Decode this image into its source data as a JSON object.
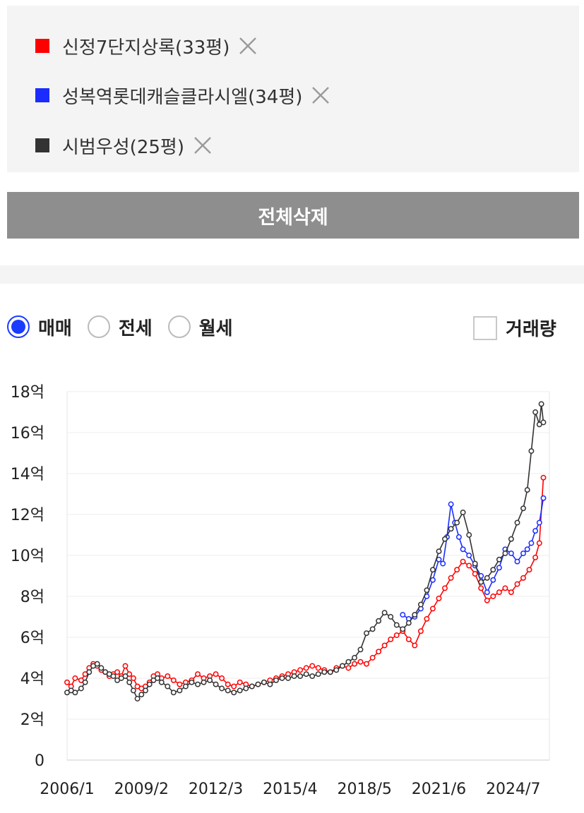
{
  "compare_list": {
    "items": [
      {
        "label": "신정7단지상록(33평)",
        "color": "#ff0000"
      },
      {
        "label": "성복역롯데캐슬클라시엘(34평)",
        "color": "#1a2cff"
      },
      {
        "label": "시범우성(25평)",
        "color": "#333333"
      }
    ],
    "close_icon": "close-icon"
  },
  "clear_all_label": "전체삭제",
  "trade_types": {
    "options": [
      "매매",
      "전세",
      "월세"
    ],
    "selected": "매매"
  },
  "volume_toggle": {
    "label": "거래량",
    "checked": false
  },
  "chart_data": {
    "type": "line",
    "title": "",
    "xlabel": "",
    "ylabel": "",
    "y_unit": "억",
    "ylim": [
      0,
      18
    ],
    "y_ticks": [
      0,
      2,
      4,
      6,
      8,
      10,
      12,
      14,
      16,
      18
    ],
    "y_tick_labels": [
      "0",
      "2억",
      "4억",
      "6억",
      "8억",
      "10억",
      "12억",
      "14억",
      "16억",
      "18억"
    ],
    "x_tick_labels": [
      "2006/1",
      "2009/2",
      "2012/3",
      "2015/4",
      "2018/5",
      "2021/6",
      "2024/7"
    ],
    "xlim": [
      "2006/1",
      "2026/1"
    ],
    "grid": true,
    "series": [
      {
        "name": "신정7단지상록(33평)",
        "color": "#ff0000",
        "points": [
          [
            "2006/1",
            3.8
          ],
          [
            "2006/3",
            3.6
          ],
          [
            "2006/5",
            4.0
          ],
          [
            "2006/8",
            3.9
          ],
          [
            "2006/10",
            4.2
          ],
          [
            "2006/12",
            4.5
          ],
          [
            "2007/2",
            4.7
          ],
          [
            "2007/4",
            4.6
          ],
          [
            "2007/6",
            4.4
          ],
          [
            "2007/8",
            4.3
          ],
          [
            "2007/10",
            4.1
          ],
          [
            "2007/12",
            4.2
          ],
          [
            "2008/2",
            4.3
          ],
          [
            "2008/4",
            4.1
          ],
          [
            "2008/6",
            4.6
          ],
          [
            "2008/8",
            4.2
          ],
          [
            "2008/10",
            4.0
          ],
          [
            "2008/12",
            3.6
          ],
          [
            "2009/2",
            3.5
          ],
          [
            "2009/4",
            3.6
          ],
          [
            "2009/6",
            3.8
          ],
          [
            "2009/8",
            4.1
          ],
          [
            "2009/10",
            4.2
          ],
          [
            "2009/12",
            4.0
          ],
          [
            "2010/3",
            4.1
          ],
          [
            "2010/6",
            3.9
          ],
          [
            "2010/9",
            3.7
          ],
          [
            "2010/12",
            3.8
          ],
          [
            "2011/3",
            3.9
          ],
          [
            "2011/6",
            4.2
          ],
          [
            "2011/9",
            4.0
          ],
          [
            "2011/12",
            4.1
          ],
          [
            "2012/3",
            4.2
          ],
          [
            "2012/6",
            4.0
          ],
          [
            "2012/9",
            3.7
          ],
          [
            "2012/12",
            3.6
          ],
          [
            "2013/3",
            3.8
          ],
          [
            "2013/6",
            3.7
          ],
          [
            "2013/9",
            3.6
          ],
          [
            "2013/12",
            3.7
          ],
          [
            "2014/3",
            3.8
          ],
          [
            "2014/6",
            3.9
          ],
          [
            "2014/9",
            4.0
          ],
          [
            "2014/12",
            4.1
          ],
          [
            "2015/3",
            4.2
          ],
          [
            "2015/6",
            4.3
          ],
          [
            "2015/9",
            4.4
          ],
          [
            "2015/12",
            4.5
          ],
          [
            "2016/3",
            4.6
          ],
          [
            "2016/6",
            4.5
          ],
          [
            "2016/9",
            4.4
          ],
          [
            "2016/12",
            4.3
          ],
          [
            "2017/3",
            4.5
          ],
          [
            "2017/6",
            4.6
          ],
          [
            "2017/9",
            4.5
          ],
          [
            "2017/12",
            4.7
          ],
          [
            "2018/3",
            4.8
          ],
          [
            "2018/6",
            4.7
          ],
          [
            "2018/9",
            5.0
          ],
          [
            "2018/12",
            5.3
          ],
          [
            "2019/3",
            5.6
          ],
          [
            "2019/6",
            5.9
          ],
          [
            "2019/9",
            6.1
          ],
          [
            "2019/12",
            6.3
          ],
          [
            "2020/3",
            5.9
          ],
          [
            "2020/6",
            5.6
          ],
          [
            "2020/9",
            6.3
          ],
          [
            "2020/12",
            6.9
          ],
          [
            "2021/3",
            7.4
          ],
          [
            "2021/6",
            7.9
          ],
          [
            "2021/9",
            8.4
          ],
          [
            "2021/12",
            8.9
          ],
          [
            "2022/3",
            9.3
          ],
          [
            "2022/6",
            9.7
          ],
          [
            "2022/9",
            9.5
          ],
          [
            "2022/12",
            9.1
          ],
          [
            "2023/3",
            8.4
          ],
          [
            "2023/6",
            7.8
          ],
          [
            "2023/9",
            8.0
          ],
          [
            "2023/12",
            8.2
          ],
          [
            "2024/3",
            8.4
          ],
          [
            "2024/6",
            8.2
          ],
          [
            "2024/9",
            8.6
          ],
          [
            "2024/12",
            8.9
          ],
          [
            "2025/3",
            9.3
          ],
          [
            "2025/6",
            9.9
          ],
          [
            "2025/8",
            10.6
          ],
          [
            "2025/10",
            13.8
          ]
        ]
      },
      {
        "name": "성복역롯데캐슬클라시엘(34평)",
        "color": "#1a2cff",
        "points": [
          [
            "2019/12",
            7.1
          ],
          [
            "2020/3",
            6.9
          ],
          [
            "2020/6",
            7.0
          ],
          [
            "2020/9",
            7.4
          ],
          [
            "2020/12",
            8.0
          ],
          [
            "2021/3",
            8.8
          ],
          [
            "2021/6",
            9.8
          ],
          [
            "2021/8",
            9.6
          ],
          [
            "2021/10",
            10.9
          ],
          [
            "2021/12",
            12.5
          ],
          [
            "2022/2",
            11.6
          ],
          [
            "2022/4",
            10.9
          ],
          [
            "2022/6",
            10.3
          ],
          [
            "2022/9",
            10.0
          ],
          [
            "2022/12",
            9.5
          ],
          [
            "2023/3",
            9.0
          ],
          [
            "2023/6",
            8.2
          ],
          [
            "2023/9",
            8.8
          ],
          [
            "2023/12",
            9.4
          ],
          [
            "2024/3",
            10.3
          ],
          [
            "2024/6",
            10.1
          ],
          [
            "2024/9",
            9.7
          ],
          [
            "2024/12",
            10.1
          ],
          [
            "2025/2",
            10.3
          ],
          [
            "2025/4",
            10.6
          ],
          [
            "2025/6",
            11.2
          ],
          [
            "2025/8",
            11.6
          ],
          [
            "2025/10",
            12.8
          ]
        ]
      },
      {
        "name": "시범우성(25평)",
        "color": "#333333",
        "points": [
          [
            "2006/1",
            3.3
          ],
          [
            "2006/3",
            3.4
          ],
          [
            "2006/5",
            3.3
          ],
          [
            "2006/8",
            3.5
          ],
          [
            "2006/10",
            3.8
          ],
          [
            "2006/12",
            4.3
          ],
          [
            "2007/2",
            4.6
          ],
          [
            "2007/4",
            4.7
          ],
          [
            "2007/6",
            4.5
          ],
          [
            "2007/8",
            4.3
          ],
          [
            "2007/10",
            4.2
          ],
          [
            "2007/12",
            4.1
          ],
          [
            "2008/2",
            3.9
          ],
          [
            "2008/4",
            4.0
          ],
          [
            "2008/6",
            4.1
          ],
          [
            "2008/8",
            3.8
          ],
          [
            "2008/10",
            3.4
          ],
          [
            "2008/12",
            3.0
          ],
          [
            "2009/2",
            3.2
          ],
          [
            "2009/4",
            3.4
          ],
          [
            "2009/6",
            3.7
          ],
          [
            "2009/8",
            3.9
          ],
          [
            "2009/10",
            4.0
          ],
          [
            "2009/12",
            3.8
          ],
          [
            "2010/3",
            3.6
          ],
          [
            "2010/6",
            3.3
          ],
          [
            "2010/9",
            3.4
          ],
          [
            "2010/12",
            3.6
          ],
          [
            "2011/3",
            3.8
          ],
          [
            "2011/6",
            3.7
          ],
          [
            "2011/9",
            3.8
          ],
          [
            "2011/12",
            3.9
          ],
          [
            "2012/3",
            3.7
          ],
          [
            "2012/6",
            3.5
          ],
          [
            "2012/9",
            3.4
          ],
          [
            "2012/12",
            3.3
          ],
          [
            "2013/3",
            3.4
          ],
          [
            "2013/6",
            3.5
          ],
          [
            "2013/9",
            3.6
          ],
          [
            "2013/12",
            3.7
          ],
          [
            "2014/3",
            3.8
          ],
          [
            "2014/6",
            3.7
          ],
          [
            "2014/9",
            3.9
          ],
          [
            "2014/12",
            4.0
          ],
          [
            "2015/3",
            4.0
          ],
          [
            "2015/6",
            4.1
          ],
          [
            "2015/9",
            4.1
          ],
          [
            "2015/12",
            4.2
          ],
          [
            "2016/3",
            4.1
          ],
          [
            "2016/6",
            4.2
          ],
          [
            "2016/9",
            4.3
          ],
          [
            "2016/12",
            4.3
          ],
          [
            "2017/3",
            4.4
          ],
          [
            "2017/6",
            4.6
          ],
          [
            "2017/9",
            4.8
          ],
          [
            "2017/12",
            5.0
          ],
          [
            "2018/3",
            5.4
          ],
          [
            "2018/6",
            6.2
          ],
          [
            "2018/9",
            6.4
          ],
          [
            "2018/12",
            6.8
          ],
          [
            "2019/3",
            7.2
          ],
          [
            "2019/6",
            7.0
          ],
          [
            "2019/9",
            6.6
          ],
          [
            "2019/12",
            6.4
          ],
          [
            "2020/3",
            6.7
          ],
          [
            "2020/6",
            7.1
          ],
          [
            "2020/9",
            7.6
          ],
          [
            "2020/12",
            8.3
          ],
          [
            "2021/3",
            9.3
          ],
          [
            "2021/6",
            10.2
          ],
          [
            "2021/9",
            10.8
          ],
          [
            "2021/12",
            11.3
          ],
          [
            "2022/3",
            11.6
          ],
          [
            "2022/6",
            12.1
          ],
          [
            "2022/9",
            11.0
          ],
          [
            "2022/12",
            9.6
          ],
          [
            "2023/3",
            8.7
          ],
          [
            "2023/6",
            8.9
          ],
          [
            "2023/9",
            9.3
          ],
          [
            "2023/12",
            9.8
          ],
          [
            "2024/3",
            10.1
          ],
          [
            "2024/6",
            10.8
          ],
          [
            "2024/9",
            11.6
          ],
          [
            "2024/12",
            12.3
          ],
          [
            "2025/2",
            13.2
          ],
          [
            "2025/4",
            15.1
          ],
          [
            "2025/6",
            17.0
          ],
          [
            "2025/8",
            16.4
          ],
          [
            "2025/9",
            17.4
          ],
          [
            "2025/10",
            16.5
          ]
        ]
      }
    ]
  }
}
